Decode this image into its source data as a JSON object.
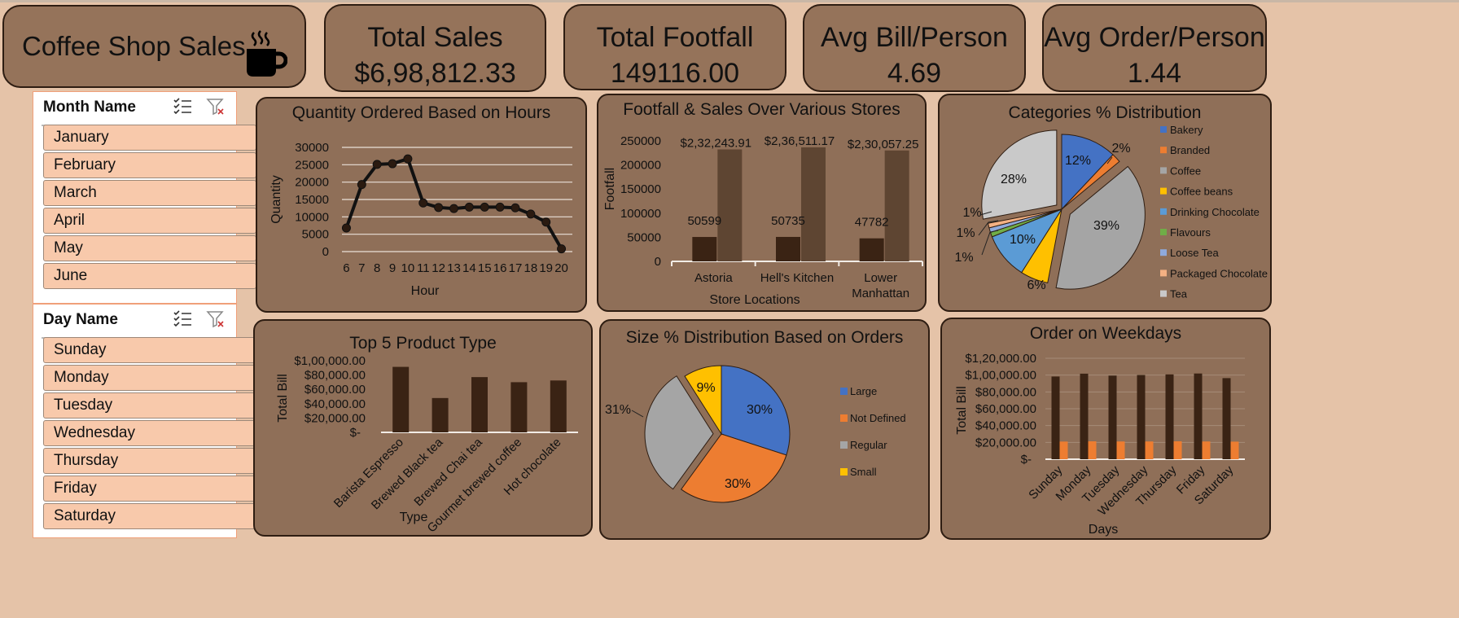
{
  "header": {
    "title": "Coffee Shop Sales"
  },
  "kpis": [
    {
      "label": "Total Sales",
      "value": "$6,98,812.33"
    },
    {
      "label": "Total Footfall",
      "value": "149116.00"
    },
    {
      "label": "Avg Bill/Person",
      "value": "4.69"
    },
    {
      "label": "Avg Order/Person",
      "value": "1.44"
    }
  ],
  "month_slicer": {
    "label": "Month Name",
    "items": [
      "January",
      "February",
      "March",
      "April",
      "May",
      "June"
    ]
  },
  "day_slicer": {
    "label": "Day Name",
    "items": [
      "Sunday",
      "Monday",
      "Tuesday",
      "Wednesday",
      "Thursday",
      "Friday",
      "Saturday"
    ]
  },
  "colors": {
    "accent": "#95735a",
    "dark_bar": "#3a2314",
    "mid_bar": "#5e4532",
    "orange": "#ed7d31"
  },
  "icons": [
    "coffee-cup-icon",
    "multi-select-icon",
    "clear-filter-icon"
  ],
  "chart_data": [
    {
      "type": "line",
      "title": "Quantity Ordered Based on Hours",
      "xlabel": "Hour",
      "ylabel": "Quantity",
      "x": [
        6,
        7,
        8,
        9,
        10,
        11,
        12,
        13,
        14,
        15,
        16,
        17,
        18,
        19,
        20
      ],
      "values": [
        6800,
        19300,
        25100,
        25300,
        26700,
        14000,
        12700,
        12400,
        12800,
        12800,
        12800,
        12600,
        10800,
        8500,
        800
      ],
      "ylim": [
        0,
        30000
      ],
      "yticks": [
        "30000",
        "25000",
        "20000",
        "15000",
        "10000",
        "5000",
        "0"
      ],
      "grid": true
    },
    {
      "type": "bar",
      "title": "Footfall & Sales Over Various Stores",
      "xlabel": "Store Locations",
      "ylabel": "Footfall",
      "categories": [
        "Astoria",
        "Hell's Kitchen",
        "Lower Manhattan"
      ],
      "series": [
        {
          "values": [
            50599,
            50735,
            47782
          ],
          "labels": [
            "50599",
            "50735",
            "47782"
          ]
        },
        {
          "values": [
            232243.91,
            236511.17,
            230057.25
          ],
          "labels": [
            "$2,32,243.91",
            "$2,36,511.17",
            "$2,30,057.25"
          ]
        }
      ],
      "ylim": [
        0,
        250000
      ],
      "yticks": [
        "250000",
        "200000",
        "150000",
        "100000",
        "50000",
        "0"
      ]
    },
    {
      "type": "pie",
      "title": "Categories % Distribution",
      "categories": [
        "Bakery",
        "Branded",
        "Coffee",
        "Coffee beans",
        "Drinking Chocolate",
        "Flavours",
        "Loose Tea",
        "Packaged Chocolate",
        "Tea"
      ],
      "values": [
        12,
        2,
        39,
        6,
        10,
        1,
        1,
        1,
        28
      ],
      "labels": [
        "12%",
        "2%",
        "39%",
        "6%",
        "10%",
        "1%",
        "1%",
        "1%",
        "28%"
      ],
      "colors": [
        "#4472c4",
        "#ed7d31",
        "#a5a5a5",
        "#ffc000",
        "#5b9bd5",
        "#70ad47",
        "#8faadc",
        "#f4b183",
        "#c9c9c9"
      ],
      "legend": "right"
    },
    {
      "type": "bar",
      "title": "Top 5 Product Type",
      "xlabel": "Type",
      "ylabel": "Total Bill",
      "categories": [
        "Barista Espresso",
        "Brewed Black tea",
        "Brewed Chai tea",
        "Gourmet brewed coffee",
        "Hot chocolate"
      ],
      "values": [
        91400,
        47900,
        77100,
        70000,
        72400
      ],
      "ylim": [
        0,
        100000
      ],
      "yticks": [
        "$1,00,000.00",
        "$80,000.00",
        "$60,000.00",
        "$40,000.00",
        "$20,000.00",
        "$-"
      ]
    },
    {
      "type": "pie",
      "title": "Size % Distribution Based on Orders",
      "categories": [
        "Large",
        "Not Defined",
        "Regular",
        "Small"
      ],
      "values": [
        30,
        30,
        31,
        9
      ],
      "labels": [
        "30%",
        "30%",
        "31%",
        "9%"
      ],
      "colors": [
        "#4472c4",
        "#ed7d31",
        "#a5a5a5",
        "#ffc000"
      ],
      "legend": "right"
    },
    {
      "type": "bar",
      "title": "Order on Weekdays",
      "xlabel": "Days",
      "ylabel": "Total Bill",
      "categories": [
        "Sunday",
        "Monday",
        "Tuesday",
        "Wednesday",
        "Thursday",
        "Friday",
        "Saturday"
      ],
      "series": [
        {
          "values": [
            98300,
            101700,
            99400,
            100100,
            100800,
            101900,
            96400
          ]
        },
        {
          "values": [
            21000,
            21300,
            21100,
            21100,
            21300,
            21100,
            20900
          ]
        }
      ],
      "ylim": [
        0,
        120000
      ],
      "yticks": [
        "$1,20,000.00",
        "$1,00,000.00",
        "$80,000.00",
        "$60,000.00",
        "$40,000.00",
        "$20,000.00",
        "$-"
      ]
    }
  ]
}
